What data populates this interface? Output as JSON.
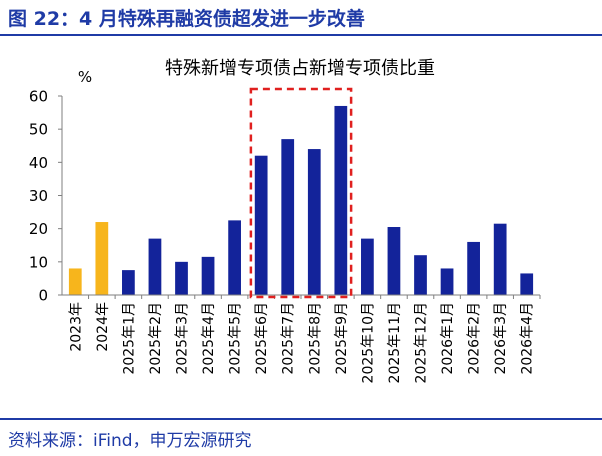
{
  "figure": {
    "title": "图 22：4 月特殊再融资债超发进一步改善",
    "source": "资料来源：iFind，申万宏源研究"
  },
  "colors": {
    "primary": "#1f3ba6",
    "bar_default": "#13239a",
    "bar_highlight": "#f7b51c",
    "box": "#e0201f",
    "axis": "#7f7f7f"
  },
  "chart_data": {
    "type": "bar",
    "title": "特殊新增专项债占新增专项债比重",
    "ylabel": "%",
    "xlabel": "",
    "ylim": [
      0,
      60
    ],
    "yticks": [
      "0",
      "10",
      "20",
      "30",
      "40",
      "50",
      "60"
    ],
    "grid": false,
    "legend": "none",
    "categories": [
      "2023年",
      "2024年",
      "2025年1月",
      "2025年2月",
      "2025年3月",
      "2025年4月",
      "2025年5月",
      "2025年6月",
      "2025年7月",
      "2025年8月",
      "2025年9月",
      "2025年10月",
      "2025年11月",
      "2025年12月",
      "2026年1月",
      "2026年2月",
      "2026年3月",
      "2026年4月"
    ],
    "values": [
      8,
      22,
      7.5,
      17,
      10,
      11.5,
      22.5,
      42,
      47,
      44,
      57,
      17,
      20.5,
      12,
      8,
      16,
      21.5,
      6.5
    ],
    "highlight_indices": [
      0,
      1
    ],
    "boxed_range": [
      "2025年6月",
      "2025年9月"
    ]
  }
}
